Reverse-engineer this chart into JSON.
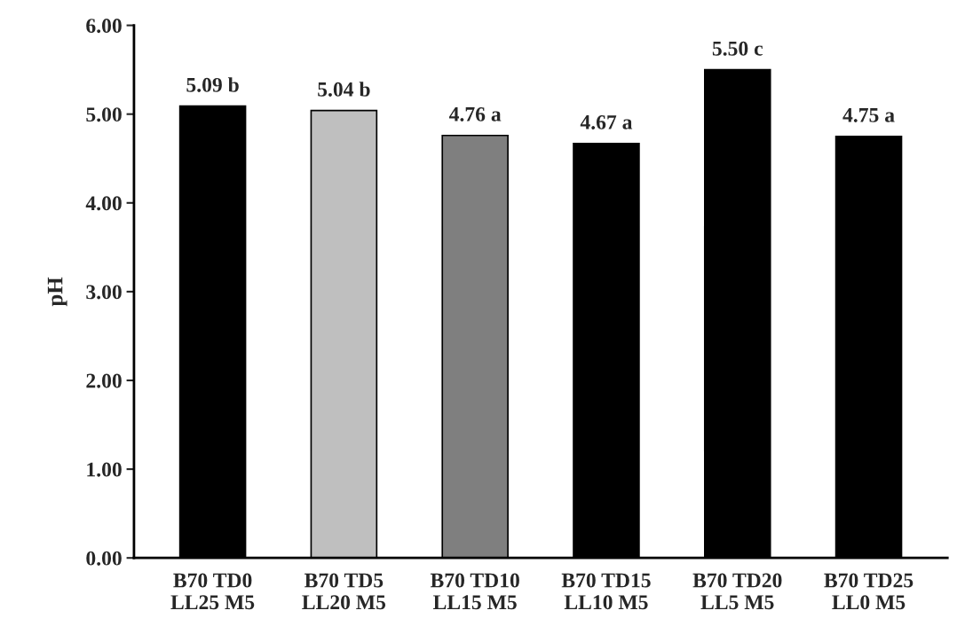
{
  "chart_data": {
    "type": "bar",
    "ylabel": "pH",
    "categories": [
      "B70 TD0\nLL25 M5",
      "B70 TD5\nLL20 M5",
      "B70 TD10\nLL15 M5",
      "B70 TD15\nLL10 M5",
      "B70 TD20\nLL5 M5",
      "B70 TD25\nLL0 M5"
    ],
    "values": [
      5.09,
      5.04,
      4.76,
      4.67,
      5.5,
      4.75
    ],
    "value_labels": [
      "5.09 b",
      "5.04 b",
      "4.76 a",
      "4.67 a",
      "5.50 c",
      "4.75 a"
    ],
    "colors": [
      "#000000",
      "#bfbfbf",
      "#7f7f7f",
      "#000000",
      "#000000",
      "#000000"
    ],
    "ylim": [
      0,
      6
    ],
    "yticks": [
      {
        "value": 0,
        "label": "0.00"
      },
      {
        "value": 1,
        "label": "1.00"
      },
      {
        "value": 2,
        "label": "2.00"
      },
      {
        "value": 3,
        "label": "3.00"
      },
      {
        "value": 4,
        "label": "4.00"
      },
      {
        "value": 5,
        "label": "5.00"
      },
      {
        "value": 6,
        "label": "6.00"
      }
    ],
    "grid": false,
    "legend": false
  }
}
